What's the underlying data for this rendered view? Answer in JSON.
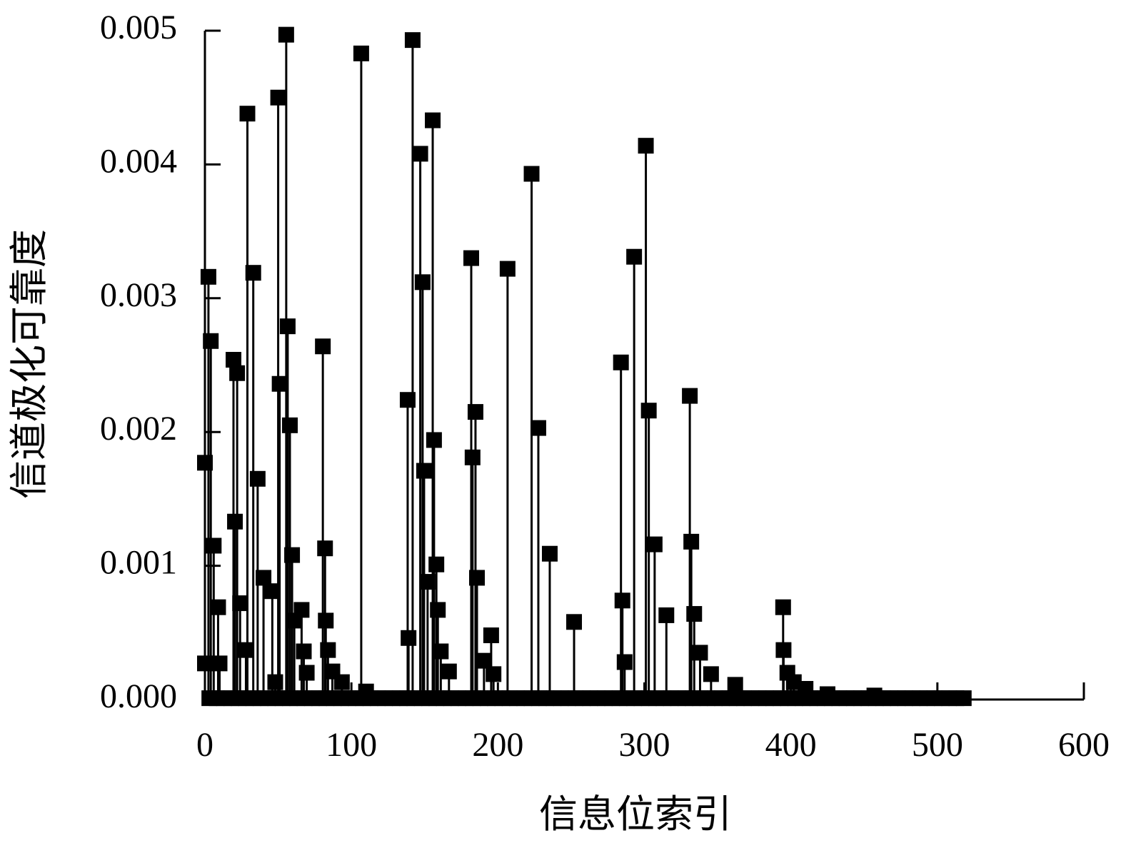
{
  "chart_data": {
    "type": "stem",
    "x_label": "信息位索引",
    "y_label": "信道极化可靠度",
    "color": "#000000",
    "xlim": [
      0,
      600
    ],
    "ylim": [
      0,
      0.005
    ],
    "xticks": [
      0,
      100,
      200,
      300,
      400,
      500,
      600
    ],
    "yticks": [
      {
        "value": 0,
        "label": "0.000"
      },
      0.001,
      0.002,
      0.003,
      0.004,
      0.005
    ],
    "x": [
      0,
      0,
      2.4,
      4,
      6,
      9,
      10,
      19.5,
      22,
      20.5,
      24,
      29,
      28,
      33,
      36,
      40,
      46,
      50,
      51,
      48,
      55.5,
      56.5,
      58,
      59.5,
      61,
      66,
      67.5,
      69.5,
      80.5,
      82,
      82.5,
      84,
      87,
      93.5,
      106.7,
      110,
      138.4,
      141.8,
      139,
      147,
      148.6,
      149.6,
      152,
      155.5,
      156.4,
      158,
      159,
      161,
      166.6,
      181.8,
      184.7,
      182.7,
      185.7,
      190.5,
      195.4,
      197,
      206.6,
      223,
      227.6,
      235.4,
      252,
      284,
      285,
      286.5,
      293,
      301,
      303,
      307,
      315,
      331,
      332,
      334,
      338,
      345.5,
      362,
      394.7,
      395,
      397.6,
      402,
      410,
      425,
      457,
      3,
      8,
      13,
      18,
      23,
      28,
      33,
      38,
      43,
      48,
      53,
      58,
      63,
      68,
      73,
      78,
      83,
      88,
      93,
      98,
      103,
      108,
      113,
      118,
      123,
      128,
      133,
      138,
      143,
      148,
      153,
      158,
      163,
      168,
      173,
      178,
      183,
      188,
      193,
      198,
      203,
      208,
      213,
      218,
      223,
      228,
      233,
      238,
      243,
      248,
      253,
      258,
      263,
      268,
      273,
      278,
      283,
      288,
      293,
      298,
      303,
      308,
      313,
      318,
      323,
      328,
      333,
      338,
      343,
      348,
      353,
      358,
      363,
      368,
      373,
      378,
      383,
      388,
      393,
      398,
      403,
      408,
      413,
      418,
      423,
      428,
      433,
      438,
      443,
      448,
      453,
      458,
      463,
      468,
      473,
      478,
      483,
      488,
      493,
      498,
      503,
      508,
      513,
      518
    ],
    "values": [
      0.00177,
      0.00027,
      0.00316,
      0.00268,
      0.00115,
      0.00069,
      0.00027,
      0.00254,
      0.00244,
      0.00133,
      0.00072,
      0.00438,
      0.00037,
      0.00319,
      0.00165,
      0.00091,
      0.00081,
      0.0045,
      0.00236,
      0.00013,
      0.00497,
      0.00279,
      0.00205,
      0.00108,
      0.00059,
      0.00067,
      0.00036,
      0.0002,
      0.00264,
      0.00113,
      0.00059,
      0.00037,
      0.00021,
      0.00013,
      0.00483,
      6e-05,
      0.00224,
      0.00493,
      0.00046,
      0.00408,
      0.00312,
      0.00171,
      0.00088,
      0.00433,
      0.00194,
      0.00101,
      0.00067,
      0.00036,
      0.00021,
      0.0033,
      0.00215,
      0.00181,
      0.00091,
      0.00029,
      0.00048,
      0.00019,
      0.00322,
      0.00393,
      0.00203,
      0.00109,
      0.00058,
      0.00252,
      0.00074,
      0.00028,
      0.00331,
      0.00414,
      0.00216,
      0.00116,
      0.00063,
      0.00227,
      0.00118,
      0.00064,
      0.00035,
      0.00019,
      0.00011,
      0.00069,
      0.00037,
      0.0002,
      0.00013,
      8e-05,
      4e-05,
      3e-05,
      1e-05,
      1e-05,
      1e-05,
      1e-05,
      1e-05,
      1e-05,
      1e-05,
      1e-05,
      1e-05,
      1e-05,
      1e-05,
      1e-05,
      1e-05,
      1e-05,
      1e-05,
      1e-05,
      1e-05,
      1e-05,
      1e-05,
      1e-05,
      1e-05,
      1e-05,
      1e-05,
      1e-05,
      1e-05,
      1e-05,
      1e-05,
      1e-05,
      1e-05,
      1e-05,
      1e-05,
      1e-05,
      1e-05,
      1e-05,
      1e-05,
      1e-05,
      1e-05,
      1e-05,
      1e-05,
      1e-05,
      1e-05,
      1e-05,
      1e-05,
      1e-05,
      1e-05,
      1e-05,
      1e-05,
      1e-05,
      1e-05,
      1e-05,
      1e-05,
      1e-05,
      1e-05,
      1e-05,
      1e-05,
      1e-05,
      1e-05,
      1e-05,
      1e-05,
      1e-05,
      1e-05,
      1e-05,
      1e-05,
      1e-05,
      1e-05,
      1e-05,
      1e-05,
      1e-05,
      1e-05,
      1e-05,
      1e-05,
      1e-05,
      1e-05,
      1e-05,
      1e-05,
      1e-05,
      1e-05,
      1e-05,
      1e-05,
      1e-05,
      1e-05,
      1e-05,
      1e-05,
      1e-05,
      1e-05,
      1e-05,
      1e-05,
      1e-05,
      1e-05,
      1e-05,
      1e-05,
      1e-05,
      1e-05,
      1e-05,
      1e-05,
      1e-05,
      1e-05,
      1e-05,
      1e-05,
      1e-05,
      1e-05,
      1e-05,
      1e-05,
      1e-05
    ]
  }
}
